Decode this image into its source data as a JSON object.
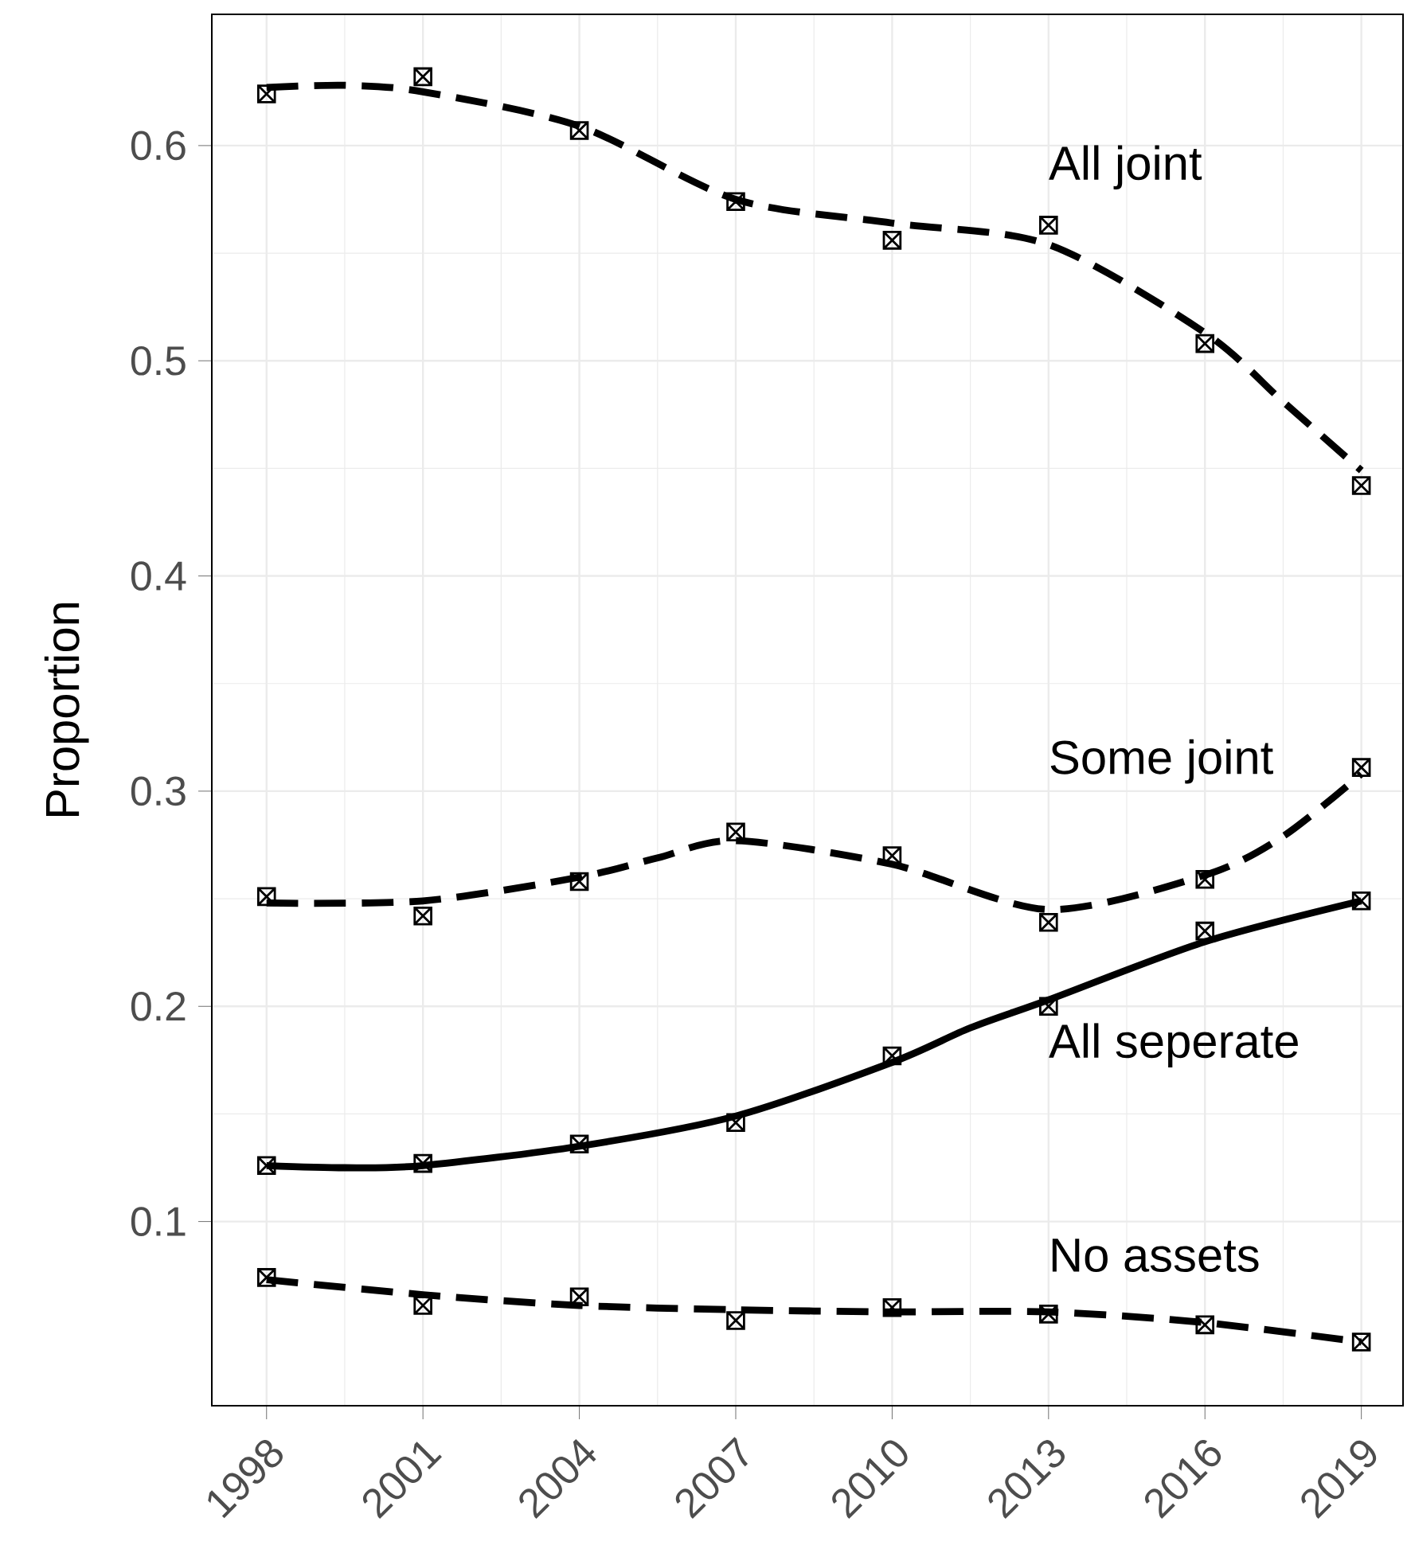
{
  "chart_data": {
    "type": "scatter",
    "ylabel": "Proportion",
    "xlim": [
      1996.95,
      2019.8
    ],
    "ylim": [
      0.0144,
      0.661
    ],
    "xticks": [
      1998,
      2001,
      2004,
      2007,
      2010,
      2013,
      2016,
      2019
    ],
    "yticks": [
      0.1,
      0.2,
      0.3,
      0.4,
      0.5,
      0.6
    ],
    "grid": true,
    "marker": "cross",
    "series": [
      {
        "color": "#000000",
        "x": [
          1998,
          2001,
          2004,
          2007,
          2010,
          2013,
          2016,
          2019
        ],
        "values": [
          0.624,
          0.632,
          0.607,
          0.574,
          0.556,
          0.563,
          0.508,
          0.442
        ]
      },
      {
        "color": "#000000",
        "x": [
          1998,
          2001,
          2004,
          2007,
          2010,
          2013,
          2016,
          2019
        ],
        "values": [
          0.251,
          0.242,
          0.258,
          0.281,
          0.27,
          0.239,
          0.259,
          0.311
        ]
      },
      {
        "color": "#000000",
        "x": [
          1998,
          2001,
          2004,
          2007,
          2010,
          2013,
          2016,
          2019
        ],
        "values": [
          0.126,
          0.127,
          0.136,
          0.146,
          0.177,
          0.2,
          0.235,
          0.249
        ]
      },
      {
        "color": "#000000",
        "x": [
          1998,
          2001,
          2004,
          2007,
          2010,
          2013,
          2016,
          2019
        ],
        "values": [
          0.074,
          0.061,
          0.065,
          0.054,
          0.06,
          0.057,
          0.052,
          0.044
        ]
      },
      {
        "type": "line",
        "name": "All joint",
        "color": "#000000",
        "line_style": "dashed",
        "marker": "none",
        "x": [
          1998,
          1999.5,
          2001,
          2004,
          2007,
          2010,
          2013,
          2016,
          2017.5,
          2019
        ],
        "values": [
          0.627,
          0.628,
          0.625,
          0.609,
          0.575,
          0.564,
          0.554,
          0.513,
          0.481,
          0.449
        ]
      },
      {
        "type": "line",
        "name": "Some joint",
        "color": "#000000",
        "line_style": "dashed",
        "marker": "none",
        "x": [
          1998,
          2001,
          2004,
          2005.5,
          2007,
          2010,
          2013,
          2016,
          2017.5,
          2019
        ],
        "values": [
          0.248,
          0.249,
          0.26,
          0.269,
          0.277,
          0.266,
          0.245,
          0.261,
          0.279,
          0.308
        ]
      },
      {
        "type": "line",
        "name": "All seperate",
        "color": "#000000",
        "line_style": "solid",
        "marker": "none",
        "x": [
          1998,
          1999.5,
          2001,
          2004,
          2007,
          2010,
          2011.5,
          2013,
          2016,
          2019
        ],
        "values": [
          0.126,
          0.125,
          0.126,
          0.135,
          0.149,
          0.174,
          0.19,
          0.203,
          0.23,
          0.249
        ]
      },
      {
        "type": "line",
        "name": "No assets",
        "color": "#000000",
        "line_style": "dashed",
        "marker": "none",
        "x": [
          1998,
          2001,
          2004,
          2007,
          2010,
          2013,
          2016,
          2019
        ],
        "values": [
          0.073,
          0.066,
          0.061,
          0.059,
          0.058,
          0.058,
          0.053,
          0.044
        ]
      }
    ]
  }
}
